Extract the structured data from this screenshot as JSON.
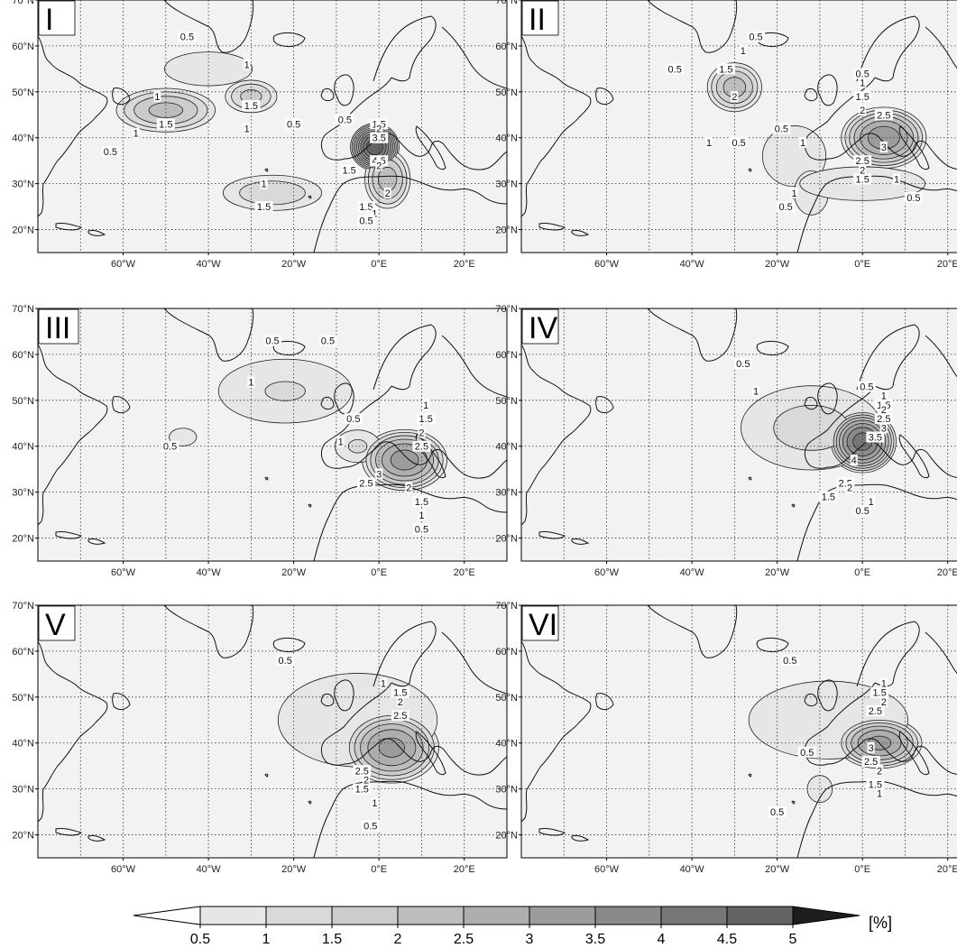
{
  "figure": {
    "unit_label": "[%]",
    "colorbar": {
      "levels": [
        "0.5",
        "1",
        "1.5",
        "2",
        "2.5",
        "3",
        "3.5",
        "4",
        "4.5",
        "5"
      ],
      "colors": [
        "#e6e6e6",
        "#d9d9d9",
        "#cccccc",
        "#bdbdbd",
        "#aeaeae",
        "#9c9c9c",
        "#8a8a8a",
        "#777777",
        "#636363",
        "#4a4a4a"
      ],
      "extend_low_color": "#ffffff",
      "extend_high_color": "#1e1e1e"
    },
    "lon_tick_labels": [
      "60°W",
      "40°W",
      "20°W",
      "0°E",
      "20°E"
    ],
    "lat_tick_labels": [
      "70°N",
      "60°N",
      "50°N",
      "40°N",
      "30°N",
      "20°N"
    ],
    "map_extent": {
      "lon_min": -80,
      "lon_max": 30,
      "lat_min": 15,
      "lat_max": 70
    }
  },
  "panels": [
    {
      "id": "I",
      "blobs": [
        {
          "lon": -50,
          "lat": 46,
          "peak": 2.2,
          "rx": 11,
          "ry": 4.5
        },
        {
          "lon": -30,
          "lat": 49,
          "peak": 1.7,
          "rx": 6,
          "ry": 3.5
        },
        {
          "lon": -40,
          "lat": 55,
          "peak": 0.8,
          "rx": 14,
          "ry": 5
        },
        {
          "lon": -1,
          "lat": 38,
          "peak": 5.0,
          "rx": 5,
          "ry": 4.5
        },
        {
          "lon": 2,
          "lat": 31,
          "peak": 2.3,
          "rx": 5,
          "ry": 6
        },
        {
          "lon": -25,
          "lat": 28,
          "peak": 1.4,
          "rx": 12,
          "ry": 4
        }
      ],
      "labels": [
        {
          "text": "0.5",
          "lon": -45,
          "lat": 62
        },
        {
          "text": "1",
          "lon": -31,
          "lat": 56
        },
        {
          "text": "1",
          "lon": -52,
          "lat": 49
        },
        {
          "text": "1.5",
          "lon": -50,
          "lat": 43
        },
        {
          "text": "1",
          "lon": -57,
          "lat": 41
        },
        {
          "text": "0.5",
          "lon": -63,
          "lat": 37
        },
        {
          "text": "1.5",
          "lon": -30,
          "lat": 47
        },
        {
          "text": "1",
          "lon": -31,
          "lat": 42
        },
        {
          "text": "0.5",
          "lon": -20,
          "lat": 43
        },
        {
          "text": "0.5",
          "lon": -8,
          "lat": 44
        },
        {
          "text": "1.5",
          "lon": 0,
          "lat": 43
        },
        {
          "text": "2",
          "lon": 0,
          "lat": 42
        },
        {
          "text": "3.5",
          "lon": 0,
          "lat": 40
        },
        {
          "text": "4.5",
          "lon": 0,
          "lat": 35
        },
        {
          "text": "2",
          "lon": 0,
          "lat": 34
        },
        {
          "text": "1.5",
          "lon": -7,
          "lat": 33
        },
        {
          "text": "1",
          "lon": -27,
          "lat": 30
        },
        {
          "text": "1.5",
          "lon": -27,
          "lat": 25
        },
        {
          "text": "1.5",
          "lon": -3,
          "lat": 25
        },
        {
          "text": "2",
          "lon": 2,
          "lat": 28
        },
        {
          "text": "1",
          "lon": -1,
          "lat": 23.5
        },
        {
          "text": "0.5",
          "lon": -3,
          "lat": 22
        }
      ]
    },
    {
      "id": "II",
      "blobs": [
        {
          "lon": -30,
          "lat": 51,
          "peak": 2.3,
          "rx": 6,
          "ry": 5
        },
        {
          "lon": 5,
          "lat": 40,
          "peak": 3.4,
          "rx": 9,
          "ry": 6
        },
        {
          "lon": -16,
          "lat": 36,
          "peak": 0.95,
          "rx": 9,
          "ry": 8
        },
        {
          "lon": -12,
          "lat": 28,
          "peak": 0.9,
          "rx": 5,
          "ry": 6
        },
        {
          "lon": 0,
          "lat": 30,
          "peak": 0.8,
          "rx": 20,
          "ry": 5
        }
      ],
      "labels": [
        {
          "text": "0.5",
          "lon": -25,
          "lat": 62
        },
        {
          "text": "1",
          "lon": -28,
          "lat": 59
        },
        {
          "text": "0.5",
          "lon": -44,
          "lat": 55
        },
        {
          "text": "1.5",
          "lon": -32,
          "lat": 55
        },
        {
          "text": "2",
          "lon": -30,
          "lat": 49
        },
        {
          "text": "0.5",
          "lon": -19,
          "lat": 42
        },
        {
          "text": "1",
          "lon": -36,
          "lat": 39
        },
        {
          "text": "0.5",
          "lon": -29,
          "lat": 39
        },
        {
          "text": "1",
          "lon": -14,
          "lat": 39
        },
        {
          "text": "0.5",
          "lon": 0,
          "lat": 54
        },
        {
          "text": "1",
          "lon": 0,
          "lat": 52
        },
        {
          "text": "1.5",
          "lon": 0,
          "lat": 49
        },
        {
          "text": "2",
          "lon": 0,
          "lat": 46
        },
        {
          "text": "2.5",
          "lon": 5,
          "lat": 45
        },
        {
          "text": "3",
          "lon": 5,
          "lat": 38
        },
        {
          "text": "2.5",
          "lon": 0,
          "lat": 35
        },
        {
          "text": "2",
          "lon": 0,
          "lat": 33
        },
        {
          "text": "1.5",
          "lon": 0,
          "lat": 31
        },
        {
          "text": "1",
          "lon": 8,
          "lat": 31
        },
        {
          "text": "1",
          "lon": -16,
          "lat": 28
        },
        {
          "text": "0.5",
          "lon": -18,
          "lat": 25
        },
        {
          "text": "0.5",
          "lon": 12,
          "lat": 27
        }
      ]
    },
    {
      "id": "III",
      "blobs": [
        {
          "lon": -22,
          "lat": 52,
          "peak": 1.05,
          "rx": 18,
          "ry": 8
        },
        {
          "lon": -46,
          "lat": 42,
          "peak": 0.7,
          "rx": 5,
          "ry": 3
        },
        {
          "lon": 6,
          "lat": 37,
          "peak": 3.3,
          "rx": 9,
          "ry": 6
        },
        {
          "lon": -5,
          "lat": 40,
          "peak": 1.1,
          "rx": 6,
          "ry": 4
        }
      ],
      "labels": [
        {
          "text": "0.5",
          "lon": -25,
          "lat": 63
        },
        {
          "text": "0.5",
          "lon": -12,
          "lat": 63
        },
        {
          "text": "1",
          "lon": -30,
          "lat": 54
        },
        {
          "text": "0.5",
          "lon": -49,
          "lat": 40
        },
        {
          "text": "0.5",
          "lon": -6,
          "lat": 46
        },
        {
          "text": "1",
          "lon": -9,
          "lat": 41
        },
        {
          "text": "1",
          "lon": 11,
          "lat": 49
        },
        {
          "text": "1.5",
          "lon": 11,
          "lat": 46
        },
        {
          "text": "2",
          "lon": 10,
          "lat": 43
        },
        {
          "text": "2.5",
          "lon": 10,
          "lat": 40
        },
        {
          "text": "3",
          "lon": 0,
          "lat": 34
        },
        {
          "text": "2.5",
          "lon": -3,
          "lat": 32
        },
        {
          "text": "2",
          "lon": 7,
          "lat": 31
        },
        {
          "text": "1.5",
          "lon": 10,
          "lat": 28
        },
        {
          "text": "1",
          "lon": 10,
          "lat": 25
        },
        {
          "text": "0.5",
          "lon": 10,
          "lat": 22
        }
      ]
    },
    {
      "id": "IV",
      "blobs": [
        {
          "lon": 0,
          "lat": 41,
          "peak": 4.3,
          "rx": 7,
          "ry": 6
        },
        {
          "lon": -12,
          "lat": 44,
          "peak": 1.2,
          "rx": 18,
          "ry": 10
        }
      ],
      "labels": [
        {
          "text": "0.5",
          "lon": -28,
          "lat": 58
        },
        {
          "text": "1",
          "lon": -25,
          "lat": 52
        },
        {
          "text": "0.5",
          "lon": 1,
          "lat": 53
        },
        {
          "text": "1",
          "lon": 5,
          "lat": 51
        },
        {
          "text": "1.5",
          "lon": 5,
          "lat": 49
        },
        {
          "text": "2",
          "lon": 5,
          "lat": 48
        },
        {
          "text": "2.5",
          "lon": 5,
          "lat": 46
        },
        {
          "text": "3",
          "lon": 5,
          "lat": 44
        },
        {
          "text": "3.5",
          "lon": 3,
          "lat": 42
        },
        {
          "text": "4",
          "lon": -2,
          "lat": 37
        },
        {
          "text": "2.5",
          "lon": -4,
          "lat": 32
        },
        {
          "text": "2",
          "lon": -3,
          "lat": 31
        },
        {
          "text": "1.5",
          "lon": -8,
          "lat": 29
        },
        {
          "text": "1",
          "lon": 2,
          "lat": 28
        },
        {
          "text": "0.5",
          "lon": 0,
          "lat": 26
        }
      ]
    },
    {
      "id": "V",
      "blobs": [
        {
          "lon": 3,
          "lat": 39,
          "peak": 3.2,
          "rx": 10,
          "ry": 7
        },
        {
          "lon": -5,
          "lat": 45,
          "peak": 1.0,
          "rx": 22,
          "ry": 12
        }
      ],
      "labels": [
        {
          "text": "0.5",
          "lon": -22,
          "lat": 58
        },
        {
          "text": "1",
          "lon": 1,
          "lat": 53
        },
        {
          "text": "1.5",
          "lon": 5,
          "lat": 51
        },
        {
          "text": "2",
          "lon": 5,
          "lat": 49
        },
        {
          "text": "2.5",
          "lon": 5,
          "lat": 46
        },
        {
          "text": "2.5",
          "lon": -4,
          "lat": 34
        },
        {
          "text": "2",
          "lon": -3,
          "lat": 32
        },
        {
          "text": "1.5",
          "lon": -4,
          "lat": 30
        },
        {
          "text": "1",
          "lon": -1,
          "lat": 27
        },
        {
          "text": "0.5",
          "lon": -2,
          "lat": 22
        }
      ]
    },
    {
      "id": "VI",
      "blobs": [
        {
          "lon": 4,
          "lat": 40,
          "peak": 3.2,
          "rx": 9,
          "ry": 5
        },
        {
          "lon": -8,
          "lat": 45,
          "peak": 1.0,
          "rx": 22,
          "ry": 10
        },
        {
          "lon": -10,
          "lat": 30,
          "peak": 0.6,
          "rx": 6,
          "ry": 6
        }
      ],
      "labels": [
        {
          "text": "0.5",
          "lon": -17,
          "lat": 58
        },
        {
          "text": "1",
          "lon": 5,
          "lat": 53
        },
        {
          "text": "1.5",
          "lon": 4,
          "lat": 51
        },
        {
          "text": "2",
          "lon": 5,
          "lat": 49
        },
        {
          "text": "2.5",
          "lon": 3,
          "lat": 47
        },
        {
          "text": "0.5",
          "lon": -13,
          "lat": 38
        },
        {
          "text": "3",
          "lon": 2,
          "lat": 39
        },
        {
          "text": "2.5",
          "lon": 2,
          "lat": 36
        },
        {
          "text": "2",
          "lon": 4,
          "lat": 34
        },
        {
          "text": "1.5",
          "lon": 3,
          "lat": 31
        },
        {
          "text": "1",
          "lon": 4,
          "lat": 29
        },
        {
          "text": "0.5",
          "lon": -20,
          "lat": 25
        }
      ]
    }
  ]
}
